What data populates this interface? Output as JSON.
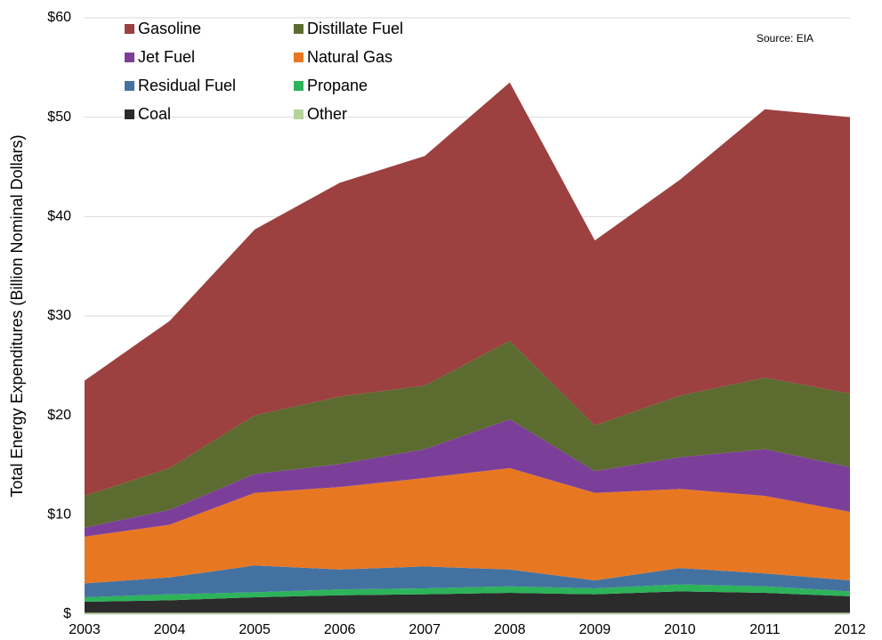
{
  "chart_data": {
    "type": "stacked_area",
    "y_axis_label": "Total Energy Expenditures (Billion Nominal Dollars)",
    "annotation": "Source: EIA",
    "categories": [
      "2003",
      "2004",
      "2005",
      "2006",
      "2007",
      "2008",
      "2009",
      "2010",
      "2011",
      "2012"
    ],
    "series": [
      {
        "name": "Other",
        "color": "#b5d39a",
        "values": [
          0.15,
          0.15,
          0.15,
          0.15,
          0.15,
          0.15,
          0.15,
          0.15,
          0.15,
          0.15
        ]
      },
      {
        "name": "Coal",
        "color": "#2b2b2b",
        "values": [
          1.1,
          1.25,
          1.55,
          1.75,
          1.85,
          2.0,
          1.85,
          2.15,
          2.0,
          1.65
        ]
      },
      {
        "name": "Propane",
        "color": "#2db35a",
        "values": [
          0.45,
          0.6,
          0.5,
          0.6,
          0.6,
          0.65,
          0.6,
          0.7,
          0.65,
          0.5
        ]
      },
      {
        "name": "Residual Fuel",
        "color": "#4472a0",
        "values": [
          1.4,
          1.7,
          2.7,
          2.0,
          2.2,
          1.7,
          0.8,
          1.65,
          1.3,
          1.1
        ]
      },
      {
        "name": "Natural Gas",
        "color": "#e87722",
        "values": [
          4.7,
          5.3,
          7.3,
          8.3,
          8.9,
          10.2,
          8.8,
          7.95,
          7.8,
          6.9
        ]
      },
      {
        "name": "Jet Fuel",
        "color": "#7b3f9a",
        "values": [
          0.9,
          1.5,
          1.9,
          2.3,
          2.9,
          4.9,
          2.2,
          3.2,
          4.7,
          4.5
        ]
      },
      {
        "name": "Distillate Fuel",
        "color": "#5c6b30",
        "values": [
          3.2,
          4.2,
          5.9,
          6.8,
          6.4,
          7.9,
          4.6,
          6.2,
          7.2,
          7.4
        ]
      },
      {
        "name": "Gasoline",
        "color": "#9c4040",
        "values": [
          11.6,
          14.8,
          18.7,
          21.5,
          23.1,
          26.0,
          18.6,
          21.7,
          27.0,
          27.8
        ]
      }
    ],
    "ylim": [
      0,
      60
    ],
    "yticks": [
      {
        "value": 0,
        "label": "$"
      },
      {
        "value": 10,
        "label": "$10"
      },
      {
        "value": 20,
        "label": "$20"
      },
      {
        "value": 30,
        "label": "$30"
      },
      {
        "value": 40,
        "label": "$40"
      },
      {
        "value": 50,
        "label": "$50"
      },
      {
        "value": 60,
        "label": "$60"
      }
    ],
    "grid": true,
    "legend": "upper left"
  }
}
